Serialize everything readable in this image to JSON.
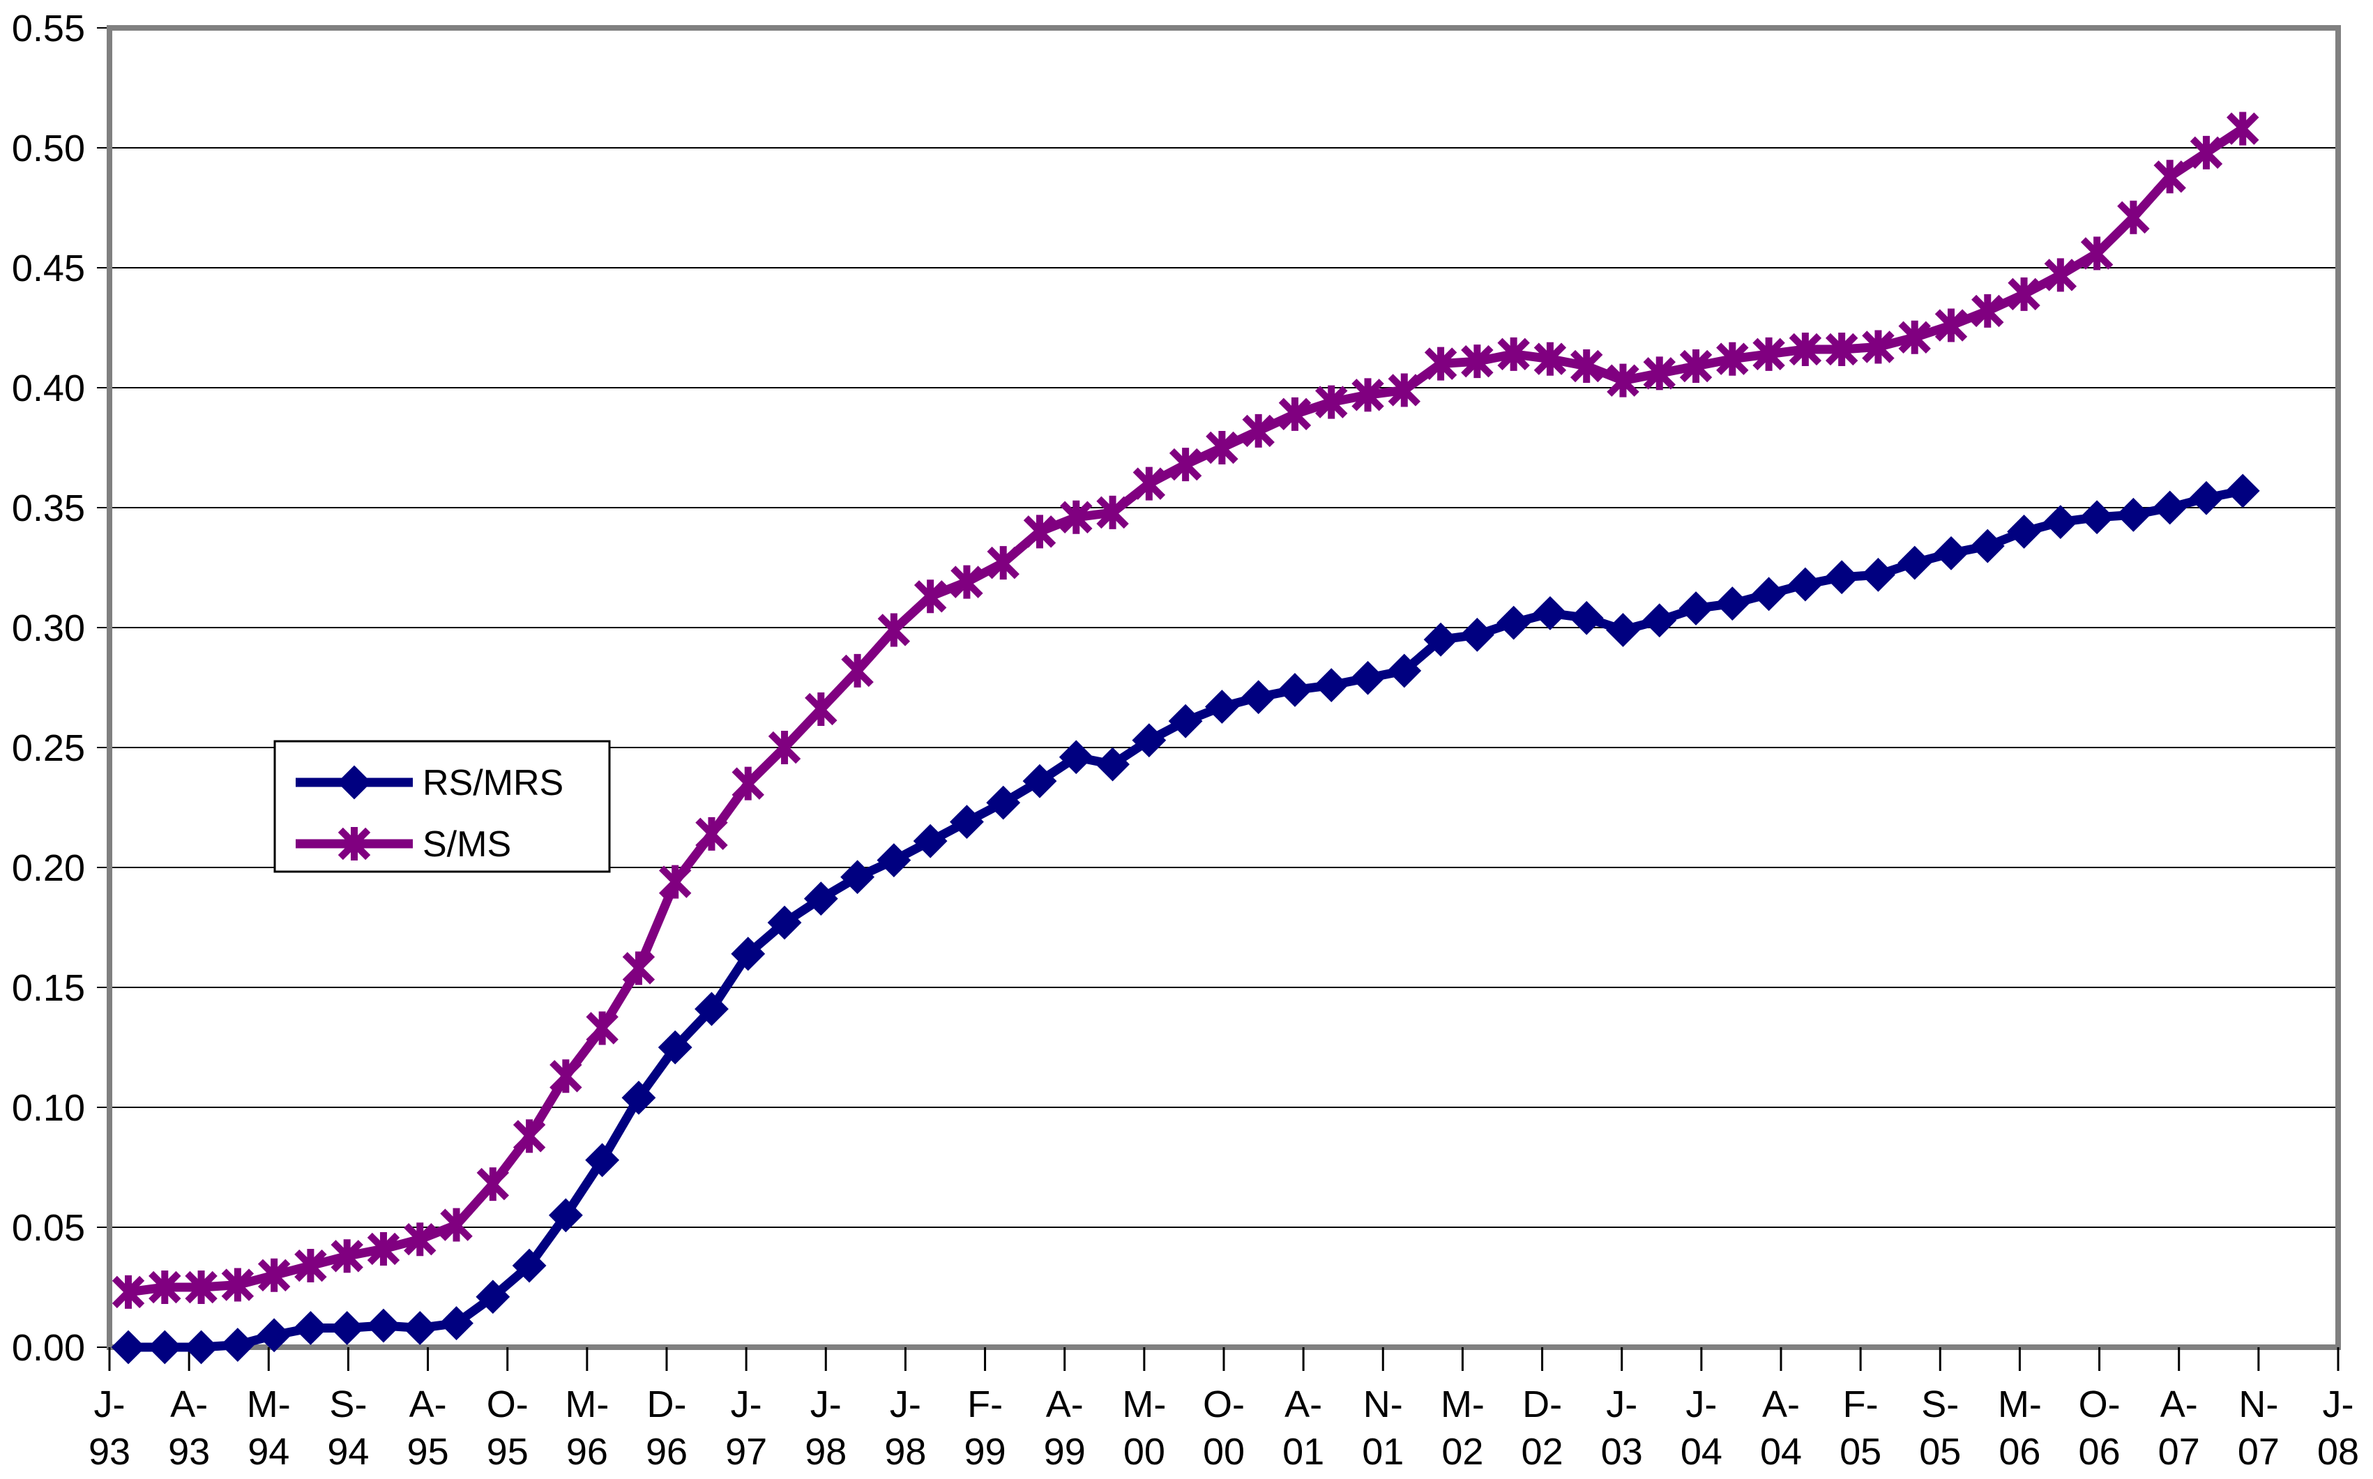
{
  "chart_data": {
    "type": "line",
    "title": "",
    "xlabel": "",
    "ylabel": "",
    "ylim": [
      0,
      0.55
    ],
    "y_tick_step": 0.05,
    "grid": "horizontal",
    "legend_position": "inside-left-middle",
    "background": "#ffffff",
    "axis_color": "#808080",
    "gridline_color": "#000000",
    "text_color": "#000000",
    "y_tick_labels": [
      "0.00",
      "0.05",
      "0.10",
      "0.15",
      "0.20",
      "0.25",
      "0.30",
      "0.35",
      "0.40",
      "0.45",
      "0.50",
      "0.55"
    ],
    "x_tick_labels": [
      [
        "J-",
        "93"
      ],
      [
        "A-",
        "93"
      ],
      [
        "M-",
        "94"
      ],
      [
        "S-",
        "94"
      ],
      [
        "A-",
        "95"
      ],
      [
        "O-",
        "95"
      ],
      [
        "M-",
        "96"
      ],
      [
        "D-",
        "96"
      ],
      [
        "J-",
        "97"
      ],
      [
        "J-",
        "98"
      ],
      [
        "J-",
        "98"
      ],
      [
        "F-",
        "99"
      ],
      [
        "A-",
        "99"
      ],
      [
        "M-",
        "00"
      ],
      [
        "O-",
        "00"
      ],
      [
        "A-",
        "01"
      ],
      [
        "N-",
        "01"
      ],
      [
        "M-",
        "02"
      ],
      [
        "D-",
        "02"
      ],
      [
        "J-",
        "03"
      ],
      [
        "J-",
        "04"
      ],
      [
        "A-",
        "04"
      ],
      [
        "F-",
        "05"
      ],
      [
        "S-",
        "05"
      ],
      [
        "M-",
        "06"
      ],
      [
        "O-",
        "06"
      ],
      [
        "A-",
        "07"
      ],
      [
        "N-",
        "07"
      ],
      [
        "J-",
        "08"
      ]
    ],
    "series": [
      {
        "name": "RS/MRS",
        "color": "#000080",
        "marker": "diamond",
        "values": [
          0.0,
          0.0,
          0.0,
          0.001,
          0.005,
          0.008,
          0.008,
          0.009,
          0.008,
          0.01,
          0.021,
          0.034,
          0.055,
          0.078,
          0.104,
          0.125,
          0.141,
          0.164,
          0.177,
          0.187,
          0.196,
          0.203,
          0.211,
          0.219,
          0.227,
          0.236,
          0.246,
          0.243,
          0.253,
          0.261,
          0.267,
          0.271,
          0.274,
          0.276,
          0.279,
          0.282,
          0.295,
          0.297,
          0.302,
          0.306,
          0.304,
          0.299,
          0.303,
          0.308,
          0.31,
          0.314,
          0.318,
          0.321,
          0.322,
          0.327,
          0.331,
          0.334,
          0.34,
          0.344,
          0.346,
          0.347,
          0.35,
          0.354,
          0.357
        ]
      },
      {
        "name": "S/MS",
        "color": "#800080",
        "marker": "star",
        "values": [
          0.023,
          0.025,
          0.025,
          0.026,
          0.03,
          0.034,
          0.038,
          0.041,
          0.045,
          0.051,
          0.068,
          0.088,
          0.113,
          0.133,
          0.158,
          0.194,
          0.214,
          0.235,
          0.25,
          0.266,
          0.282,
          0.299,
          0.313,
          0.319,
          0.327,
          0.34,
          0.346,
          0.348,
          0.36,
          0.368,
          0.375,
          0.382,
          0.389,
          0.394,
          0.397,
          0.399,
          0.41,
          0.411,
          0.414,
          0.412,
          0.409,
          0.403,
          0.406,
          0.409,
          0.412,
          0.414,
          0.416,
          0.416,
          0.417,
          0.421,
          0.426,
          0.432,
          0.439,
          0.447,
          0.456,
          0.471,
          0.488,
          0.498,
          0.508
        ]
      }
    ]
  }
}
